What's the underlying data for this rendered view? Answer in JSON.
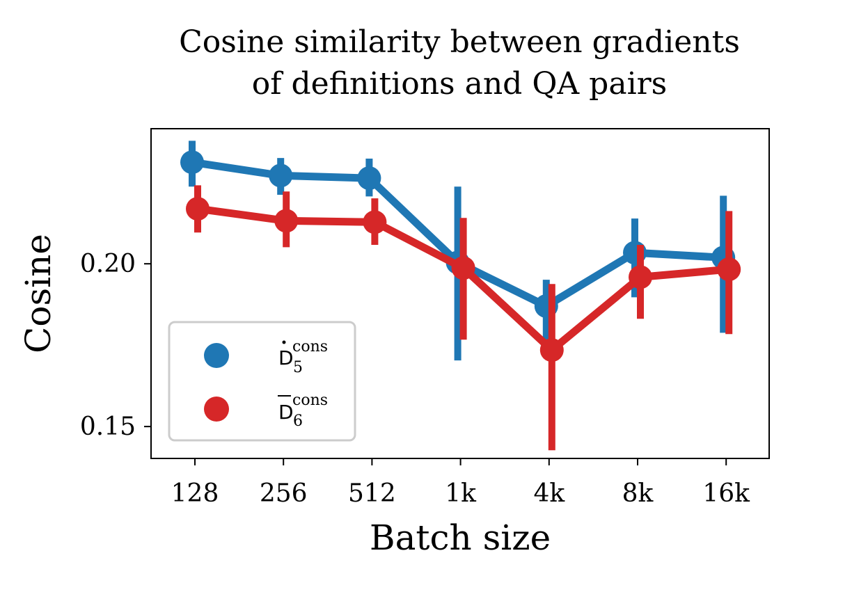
{
  "chart_data": {
    "type": "line",
    "title": [
      "Cosine similarity between gradients",
      "of definitions and QA pairs"
    ],
    "xlabel": "Batch size",
    "ylabel": "Cosine",
    "categories": [
      "128",
      "256",
      "512",
      "1k",
      "4k",
      "8k",
      "16k"
    ],
    "ylim": [
      0.1402,
      0.2415
    ],
    "yticks": [
      0.15,
      0.2
    ],
    "ytick_labels": [
      "0.15",
      "0.20"
    ],
    "grid": false,
    "legend": {
      "placement": "lower-left",
      "entries": [
        {
          "base": "D",
          "accent": "dot",
          "sub": "5",
          "sup": "cons"
        },
        {
          "base": "D",
          "accent": "bar",
          "sub": "6",
          "sup": "cons"
        }
      ]
    },
    "series": [
      {
        "name": "D5 cons (dot)",
        "color": "#1f77b4",
        "values": [
          0.2312,
          0.2271,
          0.2263,
          0.2004,
          0.187,
          0.2034,
          0.2019
        ],
        "err_low": [
          0.2237,
          0.2212,
          0.2207,
          0.1703,
          0.1763,
          0.1897,
          0.1788
        ],
        "err_high": [
          0.2378,
          0.2325,
          0.2323,
          0.2237,
          0.1951,
          0.2139,
          0.2209
        ]
      },
      {
        "name": "D6 cons (bar)",
        "color": "#d62728",
        "values": [
          0.2169,
          0.2132,
          0.2128,
          0.1987,
          0.1735,
          0.1959,
          0.1983
        ],
        "err_low": [
          0.2096,
          0.2051,
          0.2058,
          0.1767,
          0.1427,
          0.1831,
          0.1784
        ],
        "err_high": [
          0.2241,
          0.2222,
          0.2201,
          0.2141,
          0.1938,
          0.2058,
          0.2162
        ]
      }
    ]
  }
}
